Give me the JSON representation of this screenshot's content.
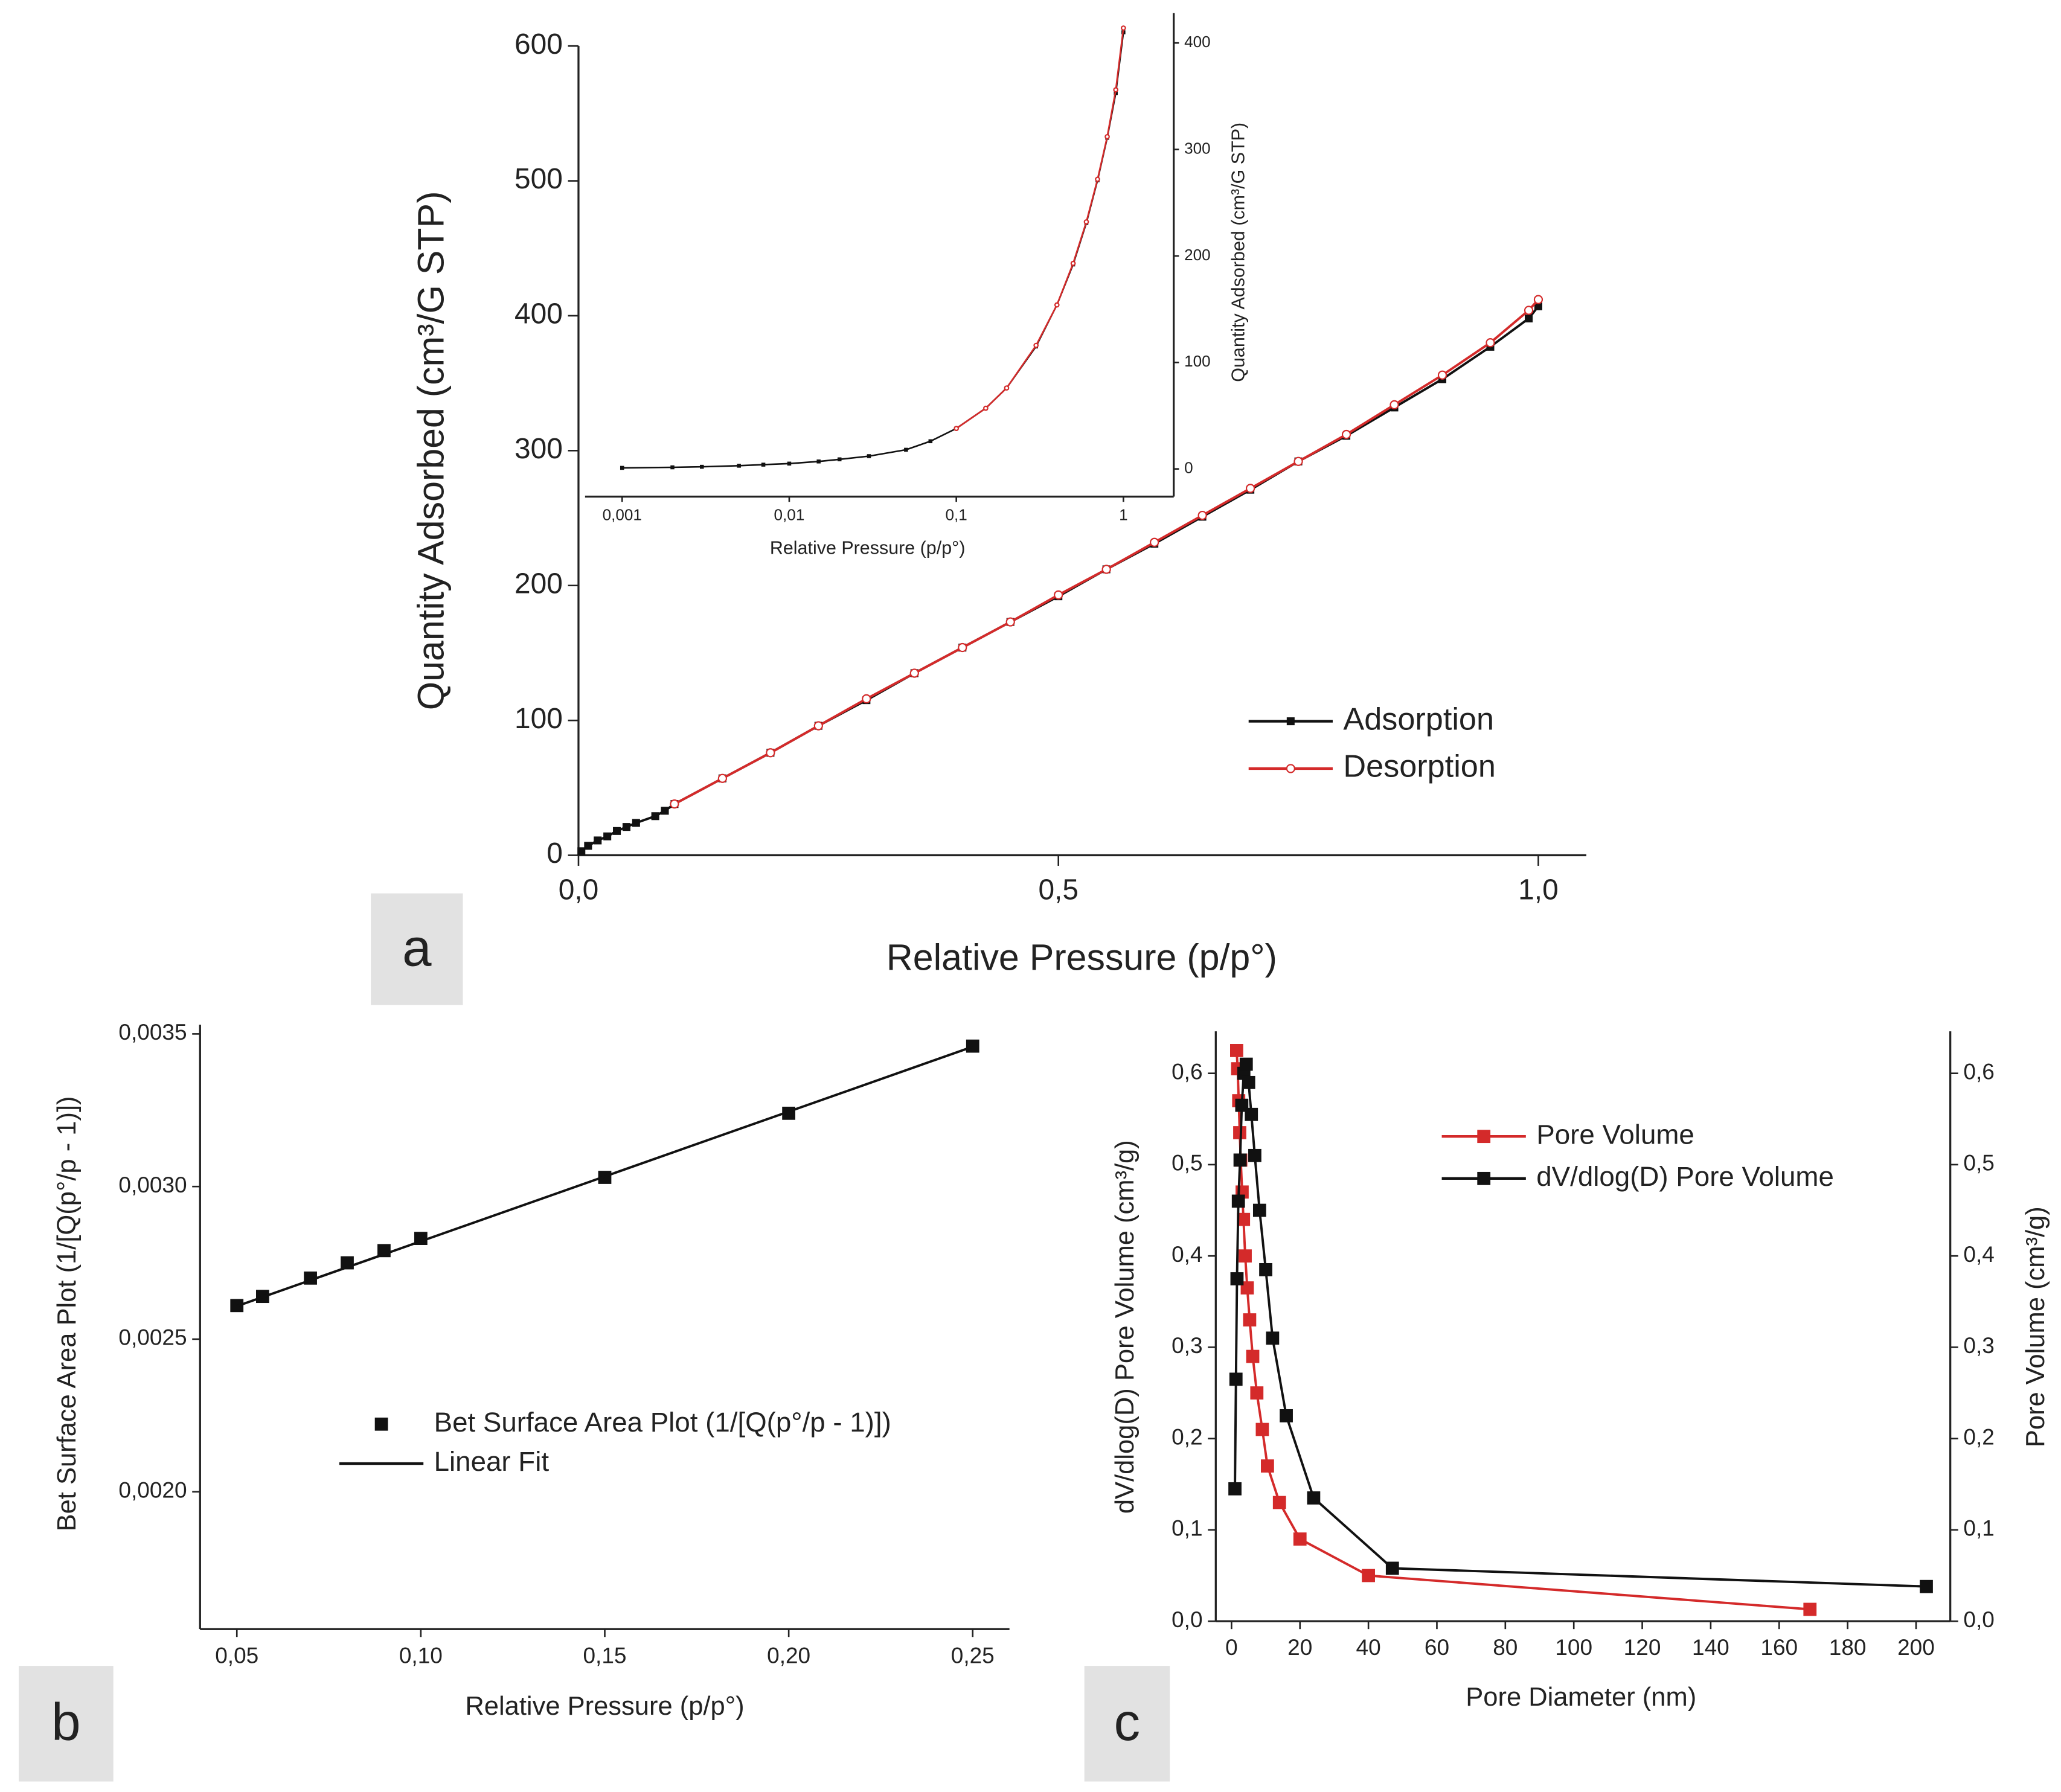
{
  "chart_data": [
    {
      "type": "line",
      "panel_label": "a",
      "x_label": "Relative Pressure (p/p°)",
      "y_label": "Quantity Adsorbed (cm³/G STP)",
      "xlim": [
        0,
        1.05
      ],
      "ylim": [
        0,
        600
      ],
      "xticks": [
        {
          "value": 0,
          "label": "0,0"
        },
        {
          "value": 0.5,
          "label": "0,5"
        },
        {
          "value": 1,
          "label": "1,0"
        }
      ],
      "yticks": [
        0,
        100,
        200,
        300,
        400,
        500,
        600
      ],
      "series": [
        {
          "name": "Adsorption",
          "color": "#111111",
          "marker": "square",
          "x": [
            0.003,
            0.01,
            0.02,
            0.03,
            0.04,
            0.05,
            0.06,
            0.08,
            0.09,
            0.1,
            0.15,
            0.2,
            0.25,
            0.3,
            0.35,
            0.4,
            0.45,
            0.5,
            0.55,
            0.6,
            0.65,
            0.7,
            0.75,
            0.8,
            0.85,
            0.9,
            0.95,
            0.99,
            1.0
          ],
          "values": [
            3,
            7,
            11,
            14,
            18,
            21,
            24,
            29,
            33,
            38,
            57,
            76,
            96,
            115,
            135,
            154,
            173,
            192,
            212,
            231,
            251,
            271,
            292,
            311,
            332,
            353,
            377,
            398,
            407
          ]
        },
        {
          "name": "Desorption",
          "color": "#d42a2a",
          "marker": "circle-open",
          "x": [
            0.1,
            0.15,
            0.2,
            0.25,
            0.3,
            0.35,
            0.4,
            0.45,
            0.5,
            0.55,
            0.6,
            0.65,
            0.7,
            0.75,
            0.8,
            0.85,
            0.9,
            0.95,
            0.99,
            1.0
          ],
          "values": [
            38,
            57,
            76,
            96,
            116,
            135,
            154,
            173,
            193,
            212,
            232,
            252,
            272,
            292,
            312,
            334,
            356,
            380,
            404,
            412
          ]
        }
      ]
    },
    {
      "type": "line",
      "x_label": "Relative Pressure (p/p°)",
      "y_label": "Quantity Adsorbed (cm³/G STP)",
      "xscale": "log",
      "xlim": [
        0.0006,
        2
      ],
      "ylim": [
        -26,
        428
      ],
      "xticks": [
        {
          "value": 0.001,
          "label": "0,001"
        },
        {
          "value": 0.01,
          "label": "0,01"
        },
        {
          "value": 0.1,
          "label": "0,1"
        },
        1
      ],
      "yticks": [
        0,
        100,
        200,
        300,
        400
      ],
      "series": [
        {
          "name": "Adsorption",
          "color": "#111111",
          "marker": "square",
          "x": [
            0.001,
            0.002,
            0.003,
            0.005,
            0.007,
            0.01,
            0.015,
            0.02,
            0.03,
            0.05,
            0.07,
            0.1,
            0.15,
            0.2,
            0.3,
            0.4,
            0.5,
            0.6,
            0.7,
            0.8,
            0.9,
            1.0
          ],
          "values": [
            1,
            1.5,
            2,
            3,
            4,
            5,
            7,
            9,
            12,
            18,
            26,
            38,
            57,
            76,
            115,
            154,
            192,
            231,
            271,
            311,
            353,
            410
          ]
        },
        {
          "name": "Desorption",
          "color": "#d42a2a",
          "marker": "circle-open",
          "x": [
            0.1,
            0.15,
            0.2,
            0.3,
            0.4,
            0.5,
            0.6,
            0.7,
            0.8,
            0.9,
            1.0
          ],
          "values": [
            38,
            57,
            76,
            116,
            154,
            193,
            232,
            272,
            312,
            356,
            414
          ]
        }
      ]
    },
    {
      "type": "scatter",
      "panel_label": "b",
      "x_label": "Relative Pressure (p/p°)",
      "y_label": "Bet Surface Area Plot (1/[Q(p°/p - 1)])",
      "xlim": [
        0.04,
        0.26
      ],
      "ylim": [
        0.00155,
        0.00353
      ],
      "xticks": [
        {
          "value": 0.05,
          "label": "0,05"
        },
        {
          "value": 0.1,
          "label": "0,10"
        },
        {
          "value": 0.15,
          "label": "0,15"
        },
        {
          "value": 0.2,
          "label": "0,20"
        },
        {
          "value": 0.25,
          "label": "0,25"
        }
      ],
      "yticks": [
        {
          "value": 0.002,
          "label": "0,0020"
        },
        {
          "value": 0.0025,
          "label": "0,0025"
        },
        {
          "value": 0.003,
          "label": "0,0030"
        },
        {
          "value": 0.0035,
          "label": "0,0035"
        }
      ],
      "series": [
        {
          "name": "Bet Surface Area Plot (1/[Q(p°/p - 1)])",
          "color": "#111111",
          "marker": "square",
          "line": false,
          "x": [
            0.05,
            0.057,
            0.07,
            0.08,
            0.09,
            0.1,
            0.15,
            0.2,
            0.25
          ],
          "values": [
            0.00261,
            0.00264,
            0.0027,
            0.00275,
            0.00279,
            0.00283,
            0.00303,
            0.00324,
            0.00346
          ]
        },
        {
          "name": "Linear Fit",
          "color": "#111111",
          "marker": "none",
          "line": true,
          "x": [
            0.05,
            0.25
          ],
          "values": [
            0.002608,
            0.003458
          ]
        }
      ]
    },
    {
      "type": "line",
      "panel_label": "c",
      "x_label": "Pore Diameter (nm)",
      "y_label": "dV/dlog(D) Pore Volume (cm³/g)",
      "y2_label": "Pore Volume (cm³/g)",
      "xlim": [
        -4.6,
        210
      ],
      "ylim": [
        0,
        0.646
      ],
      "y2lim": [
        0,
        0.646
      ],
      "xticks": [
        0,
        20,
        40,
        60,
        80,
        100,
        120,
        140,
        160,
        180,
        200
      ],
      "yticks": [
        {
          "value": 0,
          "label": "0,0"
        },
        {
          "value": 0.1,
          "label": "0,1"
        },
        {
          "value": 0.2,
          "label": "0,2"
        },
        {
          "value": 0.3,
          "label": "0,3"
        },
        {
          "value": 0.4,
          "label": "0,4"
        },
        {
          "value": 0.5,
          "label": "0,5"
        },
        {
          "value": 0.6,
          "label": "0,6"
        }
      ],
      "y2ticks": [
        {
          "value": 0,
          "label": "0,0"
        },
        {
          "value": 0.1,
          "label": "0,1"
        },
        {
          "value": 0.2,
          "label": "0,2"
        },
        {
          "value": 0.3,
          "label": "0,3"
        },
        {
          "value": 0.4,
          "label": "0,4"
        },
        {
          "value": 0.5,
          "label": "0,5"
        },
        {
          "value": 0.6,
          "label": "0,6"
        }
      ],
      "series": [
        {
          "name": "Pore Volume",
          "color": "#d42a2a",
          "marker": "square",
          "axis": "y2",
          "x": [
            1.5,
            1.8,
            2.1,
            2.4,
            2.7,
            3.1,
            3.5,
            4.0,
            4.6,
            5.3,
            6.2,
            7.4,
            9.0,
            10.5,
            14,
            20,
            40,
            169
          ],
          "values": [
            0.625,
            0.605,
            0.57,
            0.535,
            0.505,
            0.47,
            0.44,
            0.4,
            0.365,
            0.33,
            0.29,
            0.25,
            0.21,
            0.17,
            0.13,
            0.09,
            0.05,
            0.013
          ]
        },
        {
          "name": "dV/dlog(D) Pore Volume",
          "color": "#111111",
          "marker": "square",
          "x": [
            1.0,
            1.3,
            1.6,
            2.0,
            2.5,
            3.0,
            3.6,
            4.3,
            5.0,
            5.8,
            6.8,
            8.2,
            10,
            12,
            16,
            24,
            47,
            203
          ],
          "values": [
            0.145,
            0.265,
            0.375,
            0.46,
            0.505,
            0.565,
            0.6,
            0.61,
            0.59,
            0.555,
            0.51,
            0.45,
            0.385,
            0.31,
            0.225,
            0.135,
            0.058,
            0.038
          ]
        }
      ]
    }
  ]
}
